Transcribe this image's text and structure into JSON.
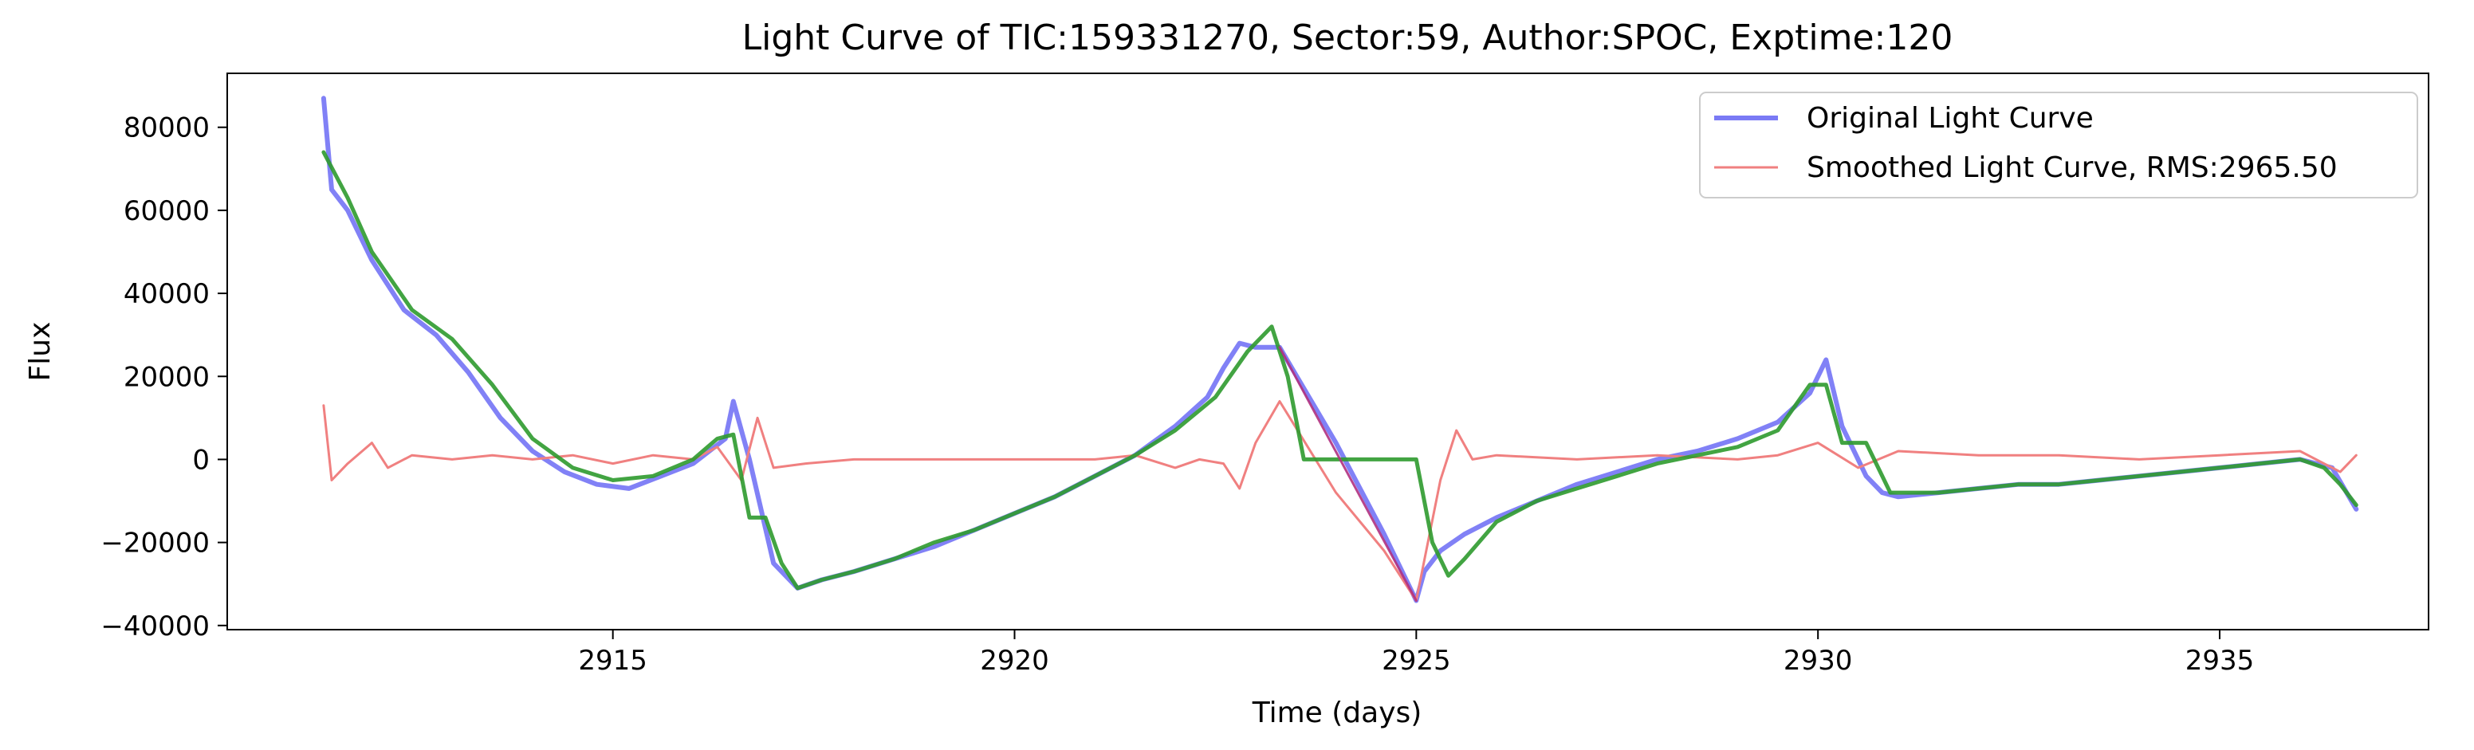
{
  "chart_data": {
    "type": "line",
    "title": "Light Curve of TIC:159331270, Sector:59, Author:SPOC, Exptime:120",
    "xlabel": "Time (days)",
    "ylabel": "Flux",
    "xlim": [
      2910.2,
      2937.6
    ],
    "ylim": [
      -41000,
      93000
    ],
    "x_ticks": [
      2915,
      2920,
      2925,
      2930,
      2935
    ],
    "y_ticks": [
      -40000,
      -20000,
      0,
      20000,
      40000,
      60000,
      80000
    ],
    "x_tick_labels": [
      "2915",
      "2920",
      "2925",
      "2930",
      "2935"
    ],
    "y_tick_labels": [
      "−40000",
      "−20000",
      "0",
      "20000",
      "40000",
      "60000",
      "80000"
    ],
    "grid": false,
    "legend_position": "top-right",
    "legend": [
      "Original Light Curve",
      "Smoothed Light Curve, RMS:2965.50"
    ],
    "series": [
      {
        "name": "Original Light Curve",
        "color": "#7a7af5",
        "x": [
          2911.4,
          2911.5,
          2911.7,
          2912.0,
          2912.4,
          2912.8,
          2913.2,
          2913.6,
          2914.0,
          2914.4,
          2914.8,
          2915.2,
          2915.6,
          2916.0,
          2916.4,
          2916.5,
          2916.7,
          2917.0,
          2917.3,
          2917.6,
          2918.0,
          2918.5,
          2919.0,
          2919.5,
          2920.0,
          2920.5,
          2921.0,
          2921.5,
          2922.0,
          2922.4,
          2922.6,
          2922.8,
          2923.0,
          2923.3,
          2924.0,
          2924.6,
          2925.0,
          2925.1,
          2925.3,
          2925.6,
          2926.0,
          2926.5,
          2927.0,
          2927.5,
          2928.0,
          2928.5,
          2929.0,
          2929.5,
          2929.9,
          2930.1,
          2930.3,
          2930.6,
          2930.8,
          2931.0,
          2931.5,
          2932.0,
          2932.5,
          2933.0,
          2933.5,
          2934.0,
          2934.5,
          2935.0,
          2935.5,
          2936.0,
          2936.4,
          2936.7
        ],
        "y": [
          87000,
          65000,
          60000,
          48000,
          36000,
          30000,
          21000,
          10000,
          2000,
          -3000,
          -6000,
          -7000,
          -4000,
          -1000,
          5000,
          14000,
          0,
          -25000,
          -31000,
          -29000,
          -27000,
          -24000,
          -21000,
          -17000,
          -13000,
          -9000,
          -4000,
          1000,
          8000,
          15000,
          22000,
          28000,
          27000,
          27000,
          4000,
          -18000,
          -34000,
          -27000,
          -22000,
          -18000,
          -14000,
          -10000,
          -6000,
          -3000,
          0,
          2000,
          5000,
          9000,
          16000,
          24000,
          8000,
          -4000,
          -8000,
          -9000,
          -8000,
          -7000,
          -6000,
          -6000,
          -5000,
          -4000,
          -3000,
          -2000,
          -1000,
          0,
          -2000,
          -12000
        ]
      },
      {
        "name": "Smoothed Light Curve, RMS:2965.50",
        "color": "#f08080",
        "x": [
          2911.4,
          2911.5,
          2911.7,
          2912.0,
          2912.2,
          2912.5,
          2913.0,
          2913.5,
          2914.0,
          2914.5,
          2915.0,
          2915.5,
          2916.0,
          2916.3,
          2916.6,
          2916.8,
          2917.0,
          2917.4,
          2918.0,
          2919.0,
          2920.0,
          2921.0,
          2921.5,
          2922.0,
          2922.3,
          2922.6,
          2922.8,
          2923.0,
          2923.3,
          2924.0,
          2924.6,
          2925.0,
          2925.3,
          2925.5,
          2925.7,
          2926.0,
          2927.0,
          2928.0,
          2929.0,
          2929.5,
          2930.0,
          2930.5,
          2931.0,
          2932.0,
          2933.0,
          2934.0,
          2935.0,
          2936.0,
          2936.5,
          2936.7
        ],
        "y": [
          13000,
          -5000,
          -1000,
          4000,
          -2000,
          1000,
          0,
          1000,
          0,
          1000,
          -1000,
          1000,
          0,
          3000,
          -5000,
          10000,
          -2000,
          -1000,
          0,
          0,
          0,
          0,
          1000,
          -2000,
          0,
          -1000,
          -7000,
          4000,
          14000,
          -8000,
          -22000,
          -34000,
          -5000,
          7000,
          0,
          1000,
          0,
          1000,
          0,
          1000,
          4000,
          -2000,
          2000,
          1000,
          1000,
          0,
          1000,
          2000,
          -3000,
          1000
        ]
      },
      {
        "name": "",
        "color": "#2e9a2e",
        "x": [
          2911.4,
          2911.7,
          2912.0,
          2912.5,
          2913.0,
          2913.5,
          2914.0,
          2914.5,
          2915.0,
          2915.5,
          2916.0,
          2916.3,
          2916.5,
          2916.7,
          2916.9,
          2917.1,
          2917.3,
          2917.6,
          2918.0,
          2918.5,
          2919.0,
          2919.5,
          2920.0,
          2920.5,
          2921.0,
          2921.5,
          2922.0,
          2922.5,
          2922.9,
          2923.2,
          2923.4,
          2923.6,
          2924.0,
          2925.0,
          2925.2,
          2925.4,
          2925.6,
          2926.0,
          2926.5,
          2927.0,
          2927.5,
          2928.0,
          2928.5,
          2929.0,
          2929.5,
          2929.9,
          2930.1,
          2930.3,
          2930.6,
          2930.9,
          2931.2,
          2931.5,
          2932.0,
          2932.5,
          2933.0,
          2933.5,
          2934.0,
          2934.5,
          2935.0,
          2935.5,
          2936.0,
          2936.3,
          2936.5,
          2936.7
        ],
        "y": [
          74000,
          63000,
          50000,
          36000,
          29000,
          18000,
          5000,
          -2000,
          -5000,
          -4000,
          0,
          5000,
          6000,
          -14000,
          -14000,
          -25000,
          -31000,
          -29000,
          -27000,
          -24000,
          -20000,
          -17000,
          -13000,
          -9000,
          -4000,
          1000,
          7000,
          15000,
          26000,
          32000,
          20000,
          0,
          0,
          0,
          -20000,
          -28000,
          -24000,
          -15000,
          -10000,
          -7000,
          -4000,
          -1000,
          1000,
          3000,
          7000,
          18000,
          18000,
          4000,
          4000,
          -8000,
          -8000,
          -8000,
          -7000,
          -6000,
          -6000,
          -5000,
          -4000,
          -3000,
          -2000,
          -1000,
          0,
          -2000,
          -6000,
          -11000
        ]
      },
      {
        "name": "",
        "color": "#b03080",
        "x": [
          2923.3,
          2925.0
        ],
        "y": [
          27000,
          -34000
        ]
      }
    ]
  }
}
